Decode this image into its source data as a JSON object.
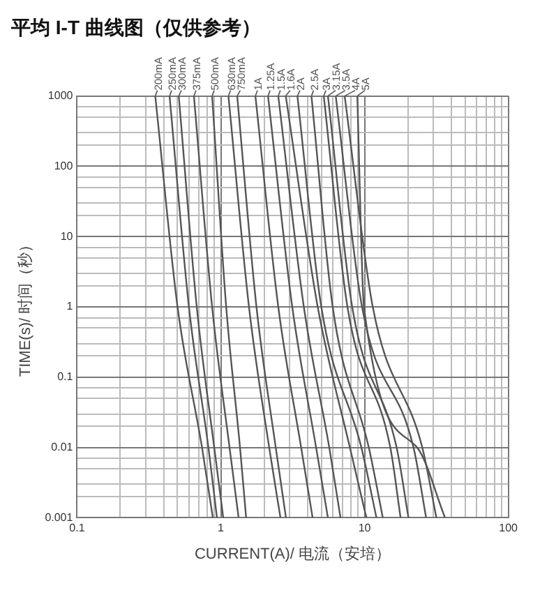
{
  "chart_data": {
    "type": "line",
    "title": "平均 I-T 曲线图（仅供参考）",
    "xlabel": "CURRENT(A)/ 电流（安培）",
    "ylabel": "TIME(s)/ 时间（秒）",
    "log": "xy",
    "grid": true,
    "legend": false,
    "marker": "none",
    "line_style": "solid",
    "xlim": [
      0.1,
      100
    ],
    "ylim": [
      0.001,
      1000
    ],
    "xticks": [
      0.1,
      {
        "value": 0.2,
        "label": null
      },
      {
        "value": 0.3,
        "label": null
      },
      {
        "value": 0.4,
        "label": null
      },
      {
        "value": 0.5,
        "label": null
      },
      {
        "value": 0.6,
        "label": null
      },
      {
        "value": 0.7,
        "label": null
      },
      {
        "value": 0.8,
        "label": null
      },
      {
        "value": 0.9,
        "label": null
      },
      1,
      {
        "value": 2,
        "label": null
      },
      {
        "value": 3,
        "label": null
      },
      {
        "value": 4,
        "label": null
      },
      {
        "value": 5,
        "label": null
      },
      {
        "value": 6,
        "label": null
      },
      {
        "value": 7,
        "label": null
      },
      {
        "value": 8,
        "label": null
      },
      {
        "value": 9,
        "label": null
      },
      10,
      {
        "value": 20,
        "label": null
      },
      {
        "value": 30,
        "label": null
      },
      {
        "value": 40,
        "label": null
      },
      {
        "value": 50,
        "label": null
      },
      {
        "value": 60,
        "label": null
      },
      {
        "value": 70,
        "label": null
      },
      {
        "value": 80,
        "label": null
      },
      {
        "value": 90,
        "label": null
      },
      100
    ],
    "yticks": [
      0.001,
      {
        "value": 0.002,
        "label": null
      },
      {
        "value": 0.003,
        "label": null
      },
      {
        "value": 0.005,
        "label": null
      },
      {
        "value": 0.007,
        "label": null
      },
      0.01,
      {
        "value": 0.02,
        "label": null
      },
      {
        "value": 0.03,
        "label": null
      },
      {
        "value": 0.05,
        "label": null
      },
      {
        "value": 0.07,
        "label": null
      },
      0.1,
      {
        "value": 0.2,
        "label": null
      },
      {
        "value": 0.3,
        "label": null
      },
      {
        "value": 0.5,
        "label": null
      },
      {
        "value": 0.7,
        "label": null
      },
      1,
      {
        "value": 2,
        "label": null
      },
      {
        "value": 3,
        "label": null
      },
      {
        "value": 5,
        "label": null
      },
      {
        "value": 7,
        "label": null
      },
      10,
      {
        "value": 20,
        "label": null
      },
      {
        "value": 30,
        "label": null
      },
      {
        "value": 50,
        "label": null
      },
      {
        "value": 70,
        "label": null
      },
      100,
      {
        "value": 200,
        "label": null
      },
      {
        "value": 300,
        "label": null
      },
      {
        "value": 500,
        "label": null
      },
      {
        "value": 700,
        "label": null
      },
      1000
    ],
    "series": [
      {
        "name": "200mA",
        "color": "#555555",
        "x": [
          0.35,
          0.5,
          0.74,
          0.88
        ],
        "values": [
          1000,
          1,
          0.01,
          0.001
        ]
      },
      {
        "name": "250mA",
        "color": "#555555",
        "x": [
          0.44,
          0.6,
          0.82,
          0.94
        ],
        "values": [
          1000,
          1,
          0.01,
          0.001
        ]
      },
      {
        "name": "300mA",
        "color": "#555555",
        "x": [
          0.51,
          0.68,
          0.9,
          1.04
        ],
        "values": [
          1000,
          1,
          0.01,
          0.001
        ]
      },
      {
        "name": "375mA",
        "color": "#555555",
        "x": [
          0.65,
          0.87,
          1.15,
          1.33
        ],
        "values": [
          1000,
          1,
          0.01,
          0.001
        ]
      },
      {
        "name": "500mA",
        "color": "#555555",
        "x": [
          0.87,
          1.09,
          1.36,
          1.5
        ],
        "values": [
          1000,
          1,
          0.01,
          0.001
        ]
      },
      {
        "name": "630mA",
        "color": "#555555",
        "x": [
          1.13,
          1.57,
          2.17,
          2.6
        ],
        "values": [
          1000,
          1,
          0.01,
          0.001
        ]
      },
      {
        "name": "750mA",
        "color": "#555555",
        "x": [
          1.3,
          1.77,
          2.41,
          2.84
        ],
        "values": [
          1000,
          1,
          0.01,
          0.001
        ]
      },
      {
        "name": "1A",
        "color": "#555555",
        "x": [
          1.74,
          2.51,
          3.62,
          4.35
        ],
        "values": [
          1000,
          1,
          0.01,
          0.001
        ]
      },
      {
        "name": "1.25A",
        "color": "#555555",
        "x": [
          2.13,
          3.14,
          4.6,
          5.56
        ],
        "values": [
          1000,
          1,
          0.01,
          0.001
        ]
      },
      {
        "name": "1.5A",
        "color": "#555555",
        "x": [
          2.51,
          3.78,
          5.68,
          6.8
        ],
        "values": [
          1000,
          1,
          0.01,
          0.001
        ]
      },
      {
        "name": "1.6A",
        "color": "#555555",
        "x": [
          2.83,
          4.72,
          7.9,
          10.3
        ],
        "values": [
          1000,
          1,
          0.01,
          0.001
        ]
      },
      {
        "name": "2A",
        "color": "#555555",
        "x": [
          3.41,
          5.0,
          9.5,
          12.1
        ],
        "values": [
          1000,
          1,
          0.01,
          0.001
        ]
      },
      {
        "name": "2.5A",
        "color": "#555555",
        "x": [
          4.27,
          6.0,
          10.7,
          13.4
        ],
        "values": [
          1000,
          1,
          0.01,
          0.001
        ]
      },
      {
        "name": "3A",
        "color": "#555555",
        "x": [
          5.2,
          7.6,
          15.1,
          17.8
        ],
        "values": [
          1000,
          1,
          0.01,
          0.001
        ]
      },
      {
        "name": "3.15A",
        "color": "#555555",
        "x": [
          5.56,
          8.2,
          16.7,
          20.2
        ],
        "values": [
          1000,
          1,
          0.01,
          0.001
        ]
      },
      {
        "name": "3.5A",
        "color": "#555555",
        "x": [
          6.3,
          9.6,
          21.9,
          26.8
        ],
        "values": [
          1000,
          1,
          0.01,
          0.001
        ]
      },
      {
        "name": "4A",
        "color": "#555555",
        "x": [
          7.27,
          11.4,
          25.2,
          31.6
        ],
        "values": [
          1000,
          1,
          0.01,
          0.001
        ]
      },
      {
        "name": "5A",
        "color": "#555555",
        "x": [
          8.9,
          9.9,
          23.2,
          36.3
        ],
        "values": [
          1000,
          1,
          0.01,
          0.001
        ]
      }
    ]
  }
}
